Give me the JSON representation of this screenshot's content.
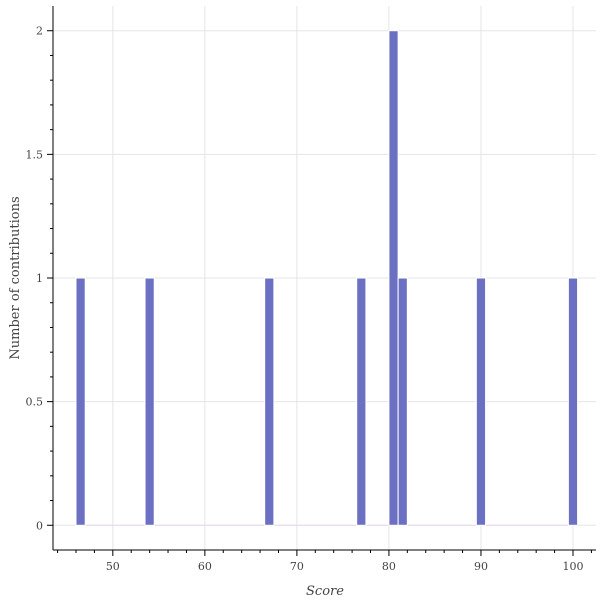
{
  "chart_data": {
    "type": "bar",
    "title": "",
    "xlabel": "Score",
    "ylabel": "Number of contributions",
    "x": [
      46.5,
      54,
      67,
      77,
      80.5,
      81.5,
      90,
      100
    ],
    "values": [
      1,
      1,
      1,
      1,
      2,
      1,
      1,
      1
    ],
    "bin_width": 1,
    "xlim": [
      43.5,
      102.5
    ],
    "ylim": [
      -0.1,
      2.1
    ],
    "x_ticks": [
      50,
      60,
      70,
      80,
      90,
      100
    ],
    "x_tick_labels": [
      "50",
      "60",
      "70",
      "80",
      "90",
      "100"
    ],
    "y_ticks": [
      0,
      0.5,
      1,
      1.5,
      2
    ],
    "y_tick_labels": [
      "0",
      "0.5",
      "1",
      "1.5",
      "2"
    ],
    "grid": true,
    "legend": "none",
    "colors": {
      "bar_fill": "#6b70c3",
      "bar_stroke": "#ffffff",
      "baseline": "#e6d6f2",
      "grid": "#e5e5e5",
      "axis": "#000000",
      "text": "#444444"
    }
  }
}
